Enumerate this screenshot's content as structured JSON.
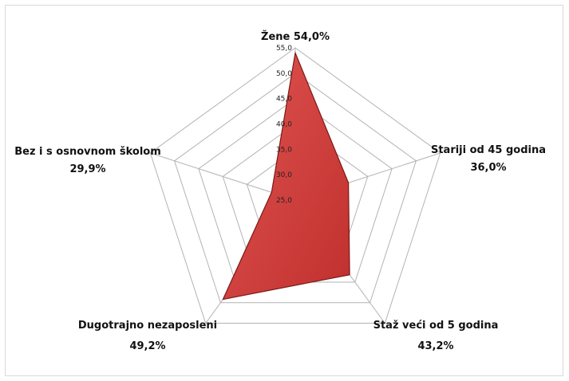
{
  "chart_data": {
    "type": "radar",
    "categories": [
      {
        "name": "Žene",
        "value_label": "54,0%"
      },
      {
        "name": "Stariji od 45 godina",
        "value_label": "36,0%"
      },
      {
        "name": "Staž veći od 5 godina",
        "value_label": "43,2%"
      },
      {
        "name": "Dugotrajno nezaposleni",
        "value_label": "49,2%"
      },
      {
        "name": "Bez i s osnovnom školom",
        "value_label": "29,9%"
      }
    ],
    "values": [
      54.0,
      36.0,
      43.2,
      49.2,
      29.9
    ],
    "rlim": [
      25,
      55
    ],
    "ticks": [
      "25,0",
      "30,0",
      "35,0",
      "40,0",
      "45,0",
      "50,0",
      "55,0"
    ],
    "grid": true,
    "colors": {
      "fill": "#c0302e",
      "fill_light": "#e05450",
      "stroke": "#7a1a18",
      "grid": "#b3b3b3"
    }
  }
}
